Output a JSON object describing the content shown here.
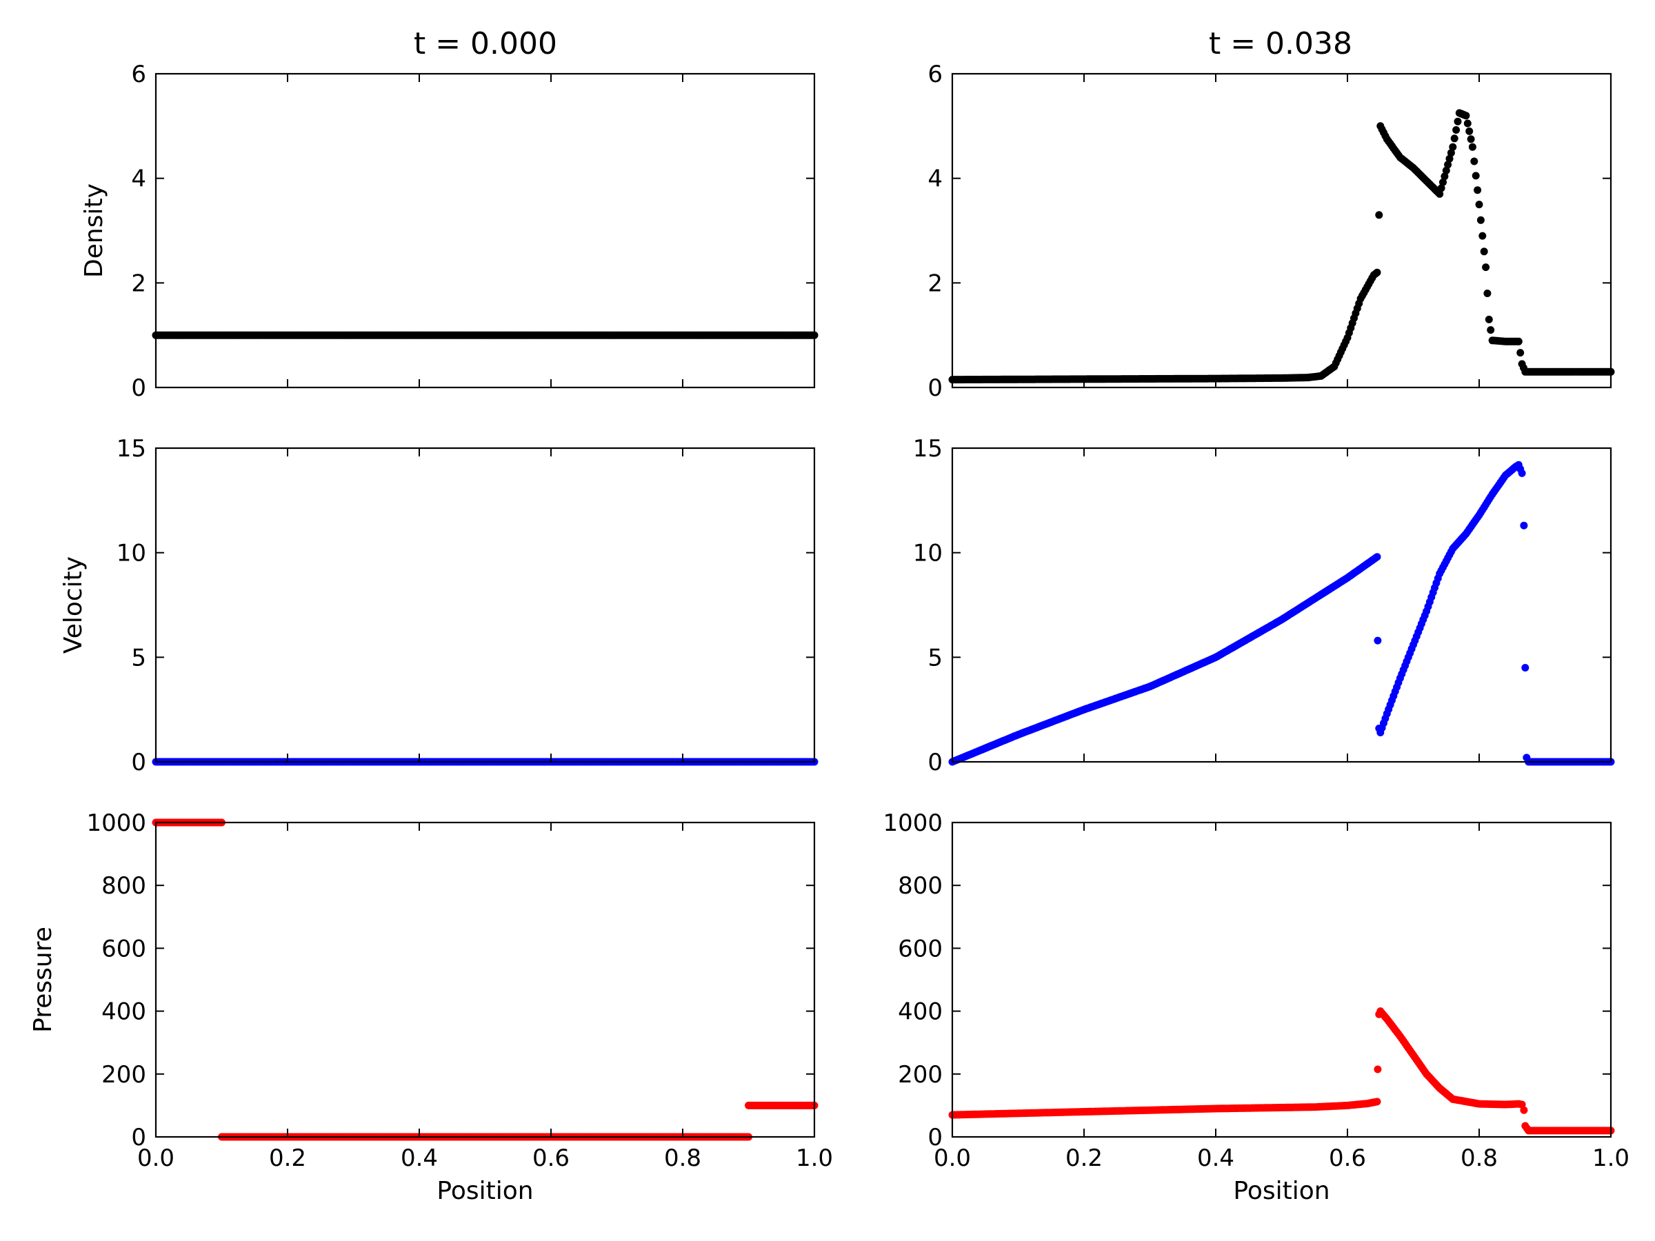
{
  "figure": {
    "column_titles": [
      "t = 0.000",
      "t = 0.038"
    ],
    "xlabel": "Position",
    "marker_shape": "filled circle"
  },
  "chart_data": [
    {
      "id": "density-t0",
      "type": "scatter",
      "title": "t = 0.000",
      "xlabel": "",
      "ylabel": "Density",
      "xlim": [
        0,
        1
      ],
      "ylim": [
        0,
        6
      ],
      "yticks": [
        0,
        2,
        4,
        6
      ],
      "xticks": [
        0.0,
        0.2,
        0.4,
        0.6,
        0.8,
        1.0
      ],
      "show_xticklabels": false,
      "grid": false,
      "color": "#000000",
      "x": [
        0.0,
        1.0
      ],
      "y": [
        1.0,
        1.0
      ],
      "description": "constant density 1.0 across domain"
    },
    {
      "id": "density-t038",
      "type": "scatter",
      "title": "t = 0.038",
      "xlabel": "",
      "ylabel": "",
      "xlim": [
        0,
        1
      ],
      "ylim": [
        0,
        6
      ],
      "yticks": [
        0,
        2,
        4,
        6
      ],
      "xticks": [
        0.0,
        0.2,
        0.4,
        0.6,
        0.8,
        1.0
      ],
      "show_xticklabels": false,
      "grid": false,
      "color": "#000000",
      "x": [
        0.0,
        0.2,
        0.4,
        0.5,
        0.54,
        0.56,
        0.58,
        0.6,
        0.62,
        0.64,
        0.645,
        0.648,
        0.65,
        0.66,
        0.68,
        0.7,
        0.72,
        0.74,
        0.76,
        0.77,
        0.78,
        0.79,
        0.8,
        0.805,
        0.81,
        0.815,
        0.82,
        0.84,
        0.86,
        0.865,
        0.87,
        0.9,
        1.0
      ],
      "y": [
        0.15,
        0.16,
        0.17,
        0.18,
        0.19,
        0.22,
        0.4,
        0.95,
        1.7,
        2.15,
        2.2,
        3.3,
        5.0,
        4.75,
        4.4,
        4.2,
        3.95,
        3.7,
        4.6,
        5.25,
        5.2,
        4.6,
        3.5,
        2.9,
        2.3,
        1.3,
        0.9,
        0.88,
        0.88,
        0.45,
        0.3,
        0.3,
        0.3
      ]
    },
    {
      "id": "velocity-t0",
      "type": "scatter",
      "title": "",
      "xlabel": "",
      "ylabel": "Velocity",
      "xlim": [
        0,
        1
      ],
      "ylim": [
        0,
        15
      ],
      "yticks": [
        0,
        5,
        10,
        15
      ],
      "xticks": [
        0.0,
        0.2,
        0.4,
        0.6,
        0.8,
        1.0
      ],
      "show_xticklabels": false,
      "grid": false,
      "color": "#0000ff",
      "x": [
        0.0,
        1.0
      ],
      "y": [
        0.0,
        0.0
      ],
      "description": "velocity 0 across domain"
    },
    {
      "id": "velocity-t038",
      "type": "scatter",
      "title": "",
      "xlabel": "",
      "ylabel": "",
      "xlim": [
        0,
        1
      ],
      "ylim": [
        0,
        15
      ],
      "yticks": [
        0,
        5,
        10,
        15
      ],
      "xticks": [
        0.0,
        0.2,
        0.4,
        0.6,
        0.8,
        1.0
      ],
      "show_xticklabels": false,
      "grid": false,
      "color": "#0000ff",
      "x": [
        0.0,
        0.1,
        0.2,
        0.3,
        0.4,
        0.5,
        0.6,
        0.645,
        0.646,
        0.648,
        0.65,
        0.66,
        0.68,
        0.7,
        0.72,
        0.74,
        0.76,
        0.78,
        0.8,
        0.82,
        0.84,
        0.855,
        0.86,
        0.865,
        0.868,
        0.87,
        0.872,
        0.875,
        1.0
      ],
      "y": [
        0.0,
        1.3,
        2.5,
        3.6,
        5.0,
        6.8,
        8.8,
        9.8,
        5.8,
        1.6,
        1.4,
        2.3,
        4.0,
        5.6,
        7.2,
        9.0,
        10.2,
        10.9,
        11.8,
        12.8,
        13.7,
        14.1,
        14.2,
        13.8,
        11.3,
        4.5,
        0.2,
        0.0,
        0.0
      ]
    },
    {
      "id": "pressure-t0",
      "type": "scatter",
      "title": "",
      "xlabel": "Position",
      "ylabel": "Pressure",
      "xlim": [
        0,
        1
      ],
      "ylim": [
        0,
        1000
      ],
      "yticks": [
        0,
        200,
        400,
        600,
        800,
        1000
      ],
      "xticks": [
        0.0,
        0.2,
        0.4,
        0.6,
        0.8,
        1.0
      ],
      "show_xticklabels": true,
      "grid": false,
      "color": "#ff0000",
      "x": [
        0.0,
        0.1,
        0.1,
        0.9,
        0.9,
        1.0
      ],
      "y": [
        1000,
        1000,
        0.01,
        0.01,
        100,
        100
      ],
      "description": "piecewise: 1000 for x<0.1, 0.01 for 0.1<x<0.9, 100 for x>0.9"
    },
    {
      "id": "pressure-t038",
      "type": "scatter",
      "title": "",
      "xlabel": "Position",
      "ylabel": "",
      "xlim": [
        0,
        1
      ],
      "ylim": [
        0,
        1000
      ],
      "yticks": [
        0,
        200,
        400,
        600,
        800,
        1000
      ],
      "xticks": [
        0.0,
        0.2,
        0.4,
        0.6,
        0.8,
        1.0
      ],
      "show_xticklabels": true,
      "grid": false,
      "color": "#ff0000",
      "x": [
        0.0,
        0.2,
        0.4,
        0.55,
        0.6,
        0.63,
        0.645,
        0.646,
        0.648,
        0.65,
        0.66,
        0.68,
        0.7,
        0.72,
        0.74,
        0.76,
        0.8,
        0.84,
        0.86,
        0.865,
        0.868,
        0.87,
        0.875,
        0.9,
        1.0
      ],
      "y": [
        70,
        80,
        90,
        95,
        100,
        106,
        112,
        215,
        390,
        400,
        375,
        320,
        260,
        200,
        155,
        120,
        105,
        103,
        105,
        103,
        85,
        35,
        20,
        20,
        20
      ]
    }
  ]
}
